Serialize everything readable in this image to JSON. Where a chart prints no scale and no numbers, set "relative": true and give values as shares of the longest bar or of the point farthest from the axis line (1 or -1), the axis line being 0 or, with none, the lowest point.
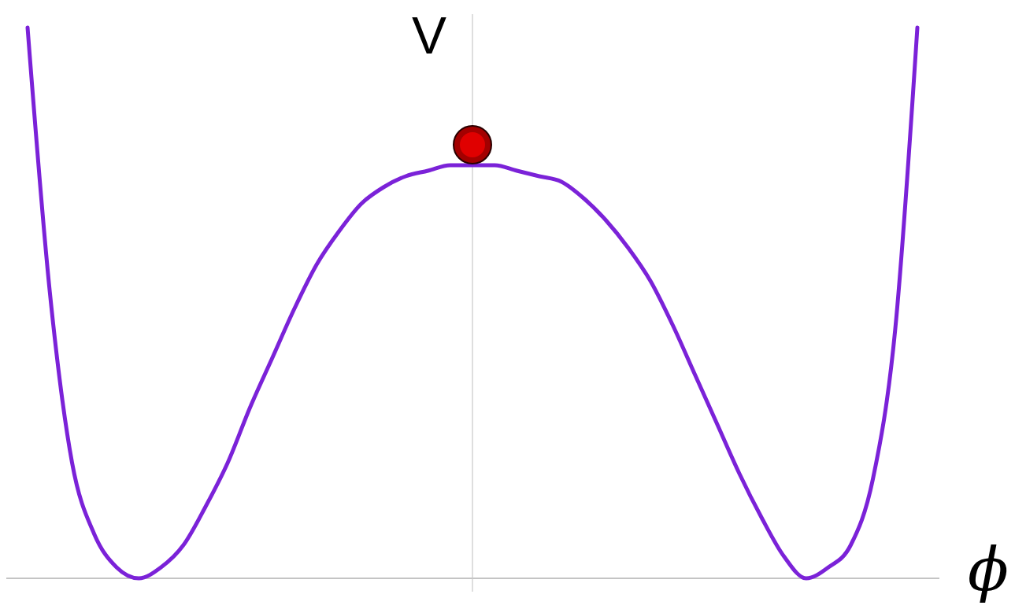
{
  "chart_data": {
    "type": "line",
    "xlabel": "ϕ",
    "ylabel": "V",
    "relative": true,
    "categories": [
      null,
      null,
      null,
      null,
      null,
      null,
      null,
      null,
      null,
      null,
      null,
      null,
      null,
      null,
      null,
      null,
      null,
      null,
      null,
      null,
      null,
      null,
      null,
      null,
      null,
      null,
      null,
      null,
      null,
      null,
      null,
      null,
      null,
      null,
      null,
      null,
      null,
      null,
      null,
      null,
      null
    ],
    "series": [
      {
        "color": "#7b22d8",
        "values": [
          1.0,
          0.52,
          0.21,
          0.08,
          0.02,
          0,
          0.02,
          0.06,
          0.13,
          0.21,
          0.31,
          0.4,
          0.49,
          0.57,
          0.63,
          0.68,
          0.71,
          0.73,
          0.74,
          0.75,
          0.75,
          0.75,
          0.74,
          0.73,
          0.72,
          0.69,
          0.65,
          0.6,
          0.54,
          0.46,
          0.37,
          0.28,
          0.19,
          0.11,
          0.04,
          0,
          0.02,
          0.06,
          0.18,
          0.45,
          1.0
        ]
      }
    ]
  }
}
